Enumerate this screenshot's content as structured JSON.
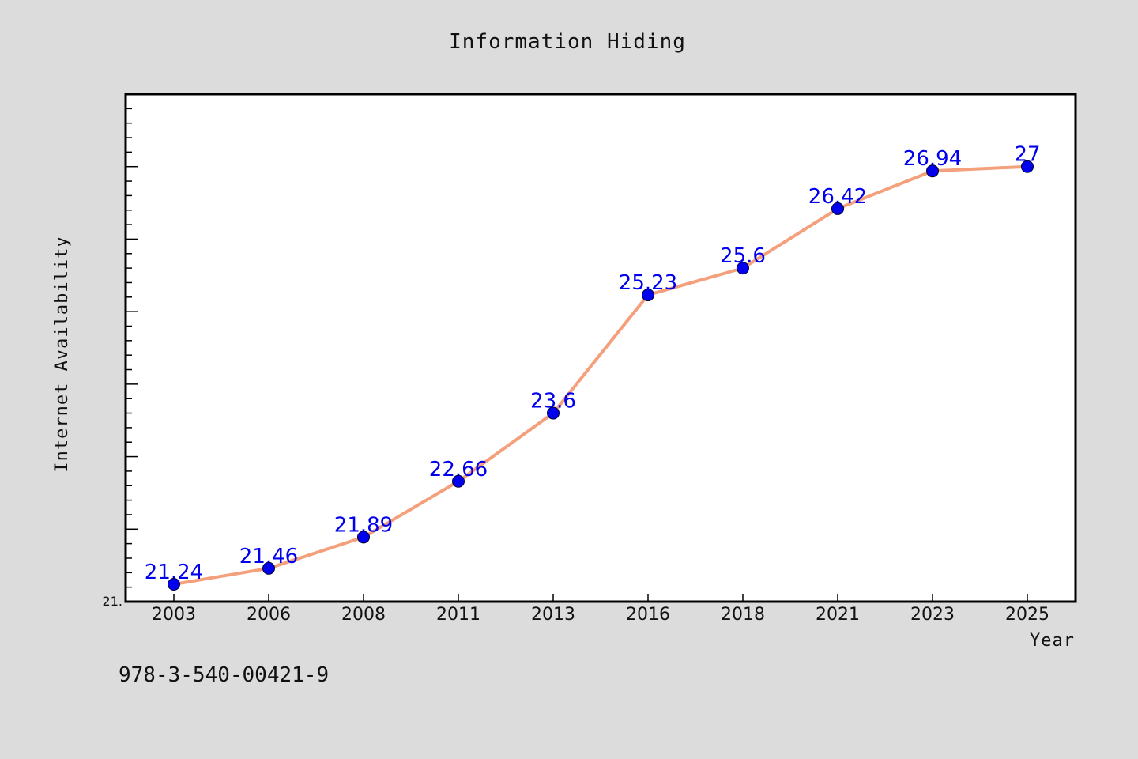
{
  "footer": {
    "isbn": "978-3-540-00421-9"
  },
  "chart_data": {
    "type": "line",
    "title": "Information Hiding",
    "xlabel": "Year",
    "ylabel": "Internet Availability",
    "categories": [
      "2003",
      "2006",
      "2008",
      "2011",
      "2013",
      "2016",
      "2018",
      "2021",
      "2023",
      "2025"
    ],
    "series": [
      {
        "values": [
          21.24,
          21.46,
          21.89,
          22.66,
          23.6,
          25.23,
          25.6,
          26.42,
          26.94,
          27
        ]
      }
    ],
    "ylim": [
      21.0,
      28.0
    ],
    "y_tick_labels": [
      "21."
    ],
    "line_color": "#f4a07c",
    "marker_color": "#0000ee",
    "label_color": "#0000ee",
    "plot_background": "#ffffff",
    "page_background": "#dcdcdc",
    "grid": false,
    "legend": "none"
  }
}
